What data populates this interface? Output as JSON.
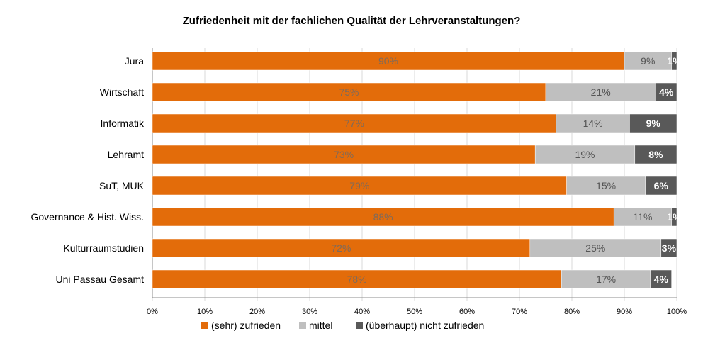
{
  "chart_data": {
    "type": "bar",
    "orientation": "horizontal",
    "stacked": "percent",
    "title": "Zufriedenheit mit der fachlichen Qualität der Lehrveranstaltungen?",
    "categories": [
      "Jura",
      "Wirtschaft",
      "Informatik",
      "Lehramt",
      "SuT, MUK",
      "Governance & Hist. Wiss.",
      "Kulturraumstudien",
      "Uni Passau Gesamt"
    ],
    "series": [
      {
        "name": "(sehr) zufrieden",
        "color": "#e36c0a",
        "label_color": "#7f6a5a",
        "values": [
          90,
          75,
          77,
          73,
          79,
          88,
          72,
          78
        ],
        "labels": [
          "90%",
          "75%",
          "77%",
          "73%",
          "79%",
          "88%",
          "72%",
          "78%"
        ]
      },
      {
        "name": "mittel",
        "color": "#bfbfbf",
        "label_color": "#555555",
        "values": [
          9,
          21,
          14,
          19,
          15,
          11,
          25,
          17
        ],
        "labels": [
          "9%",
          "21%",
          "14%",
          "19%",
          "15%",
          "11%",
          "25%",
          "17%"
        ]
      },
      {
        "name": "(überhaupt) nicht zufrieden",
        "color": "#595959",
        "label_color": "#ffffff",
        "values": [
          1,
          4,
          9,
          8,
          6,
          1,
          3,
          4
        ],
        "labels": [
          "1%",
          "4%",
          "9%",
          "8%",
          "6%",
          "1%",
          "3%",
          "4%"
        ]
      }
    ],
    "xlim": [
      0,
      100
    ],
    "xticks": [
      "0%",
      "10%",
      "20%",
      "30%",
      "40%",
      "50%",
      "60%",
      "70%",
      "80%",
      "90%",
      "100%"
    ],
    "legend": "bottom"
  }
}
